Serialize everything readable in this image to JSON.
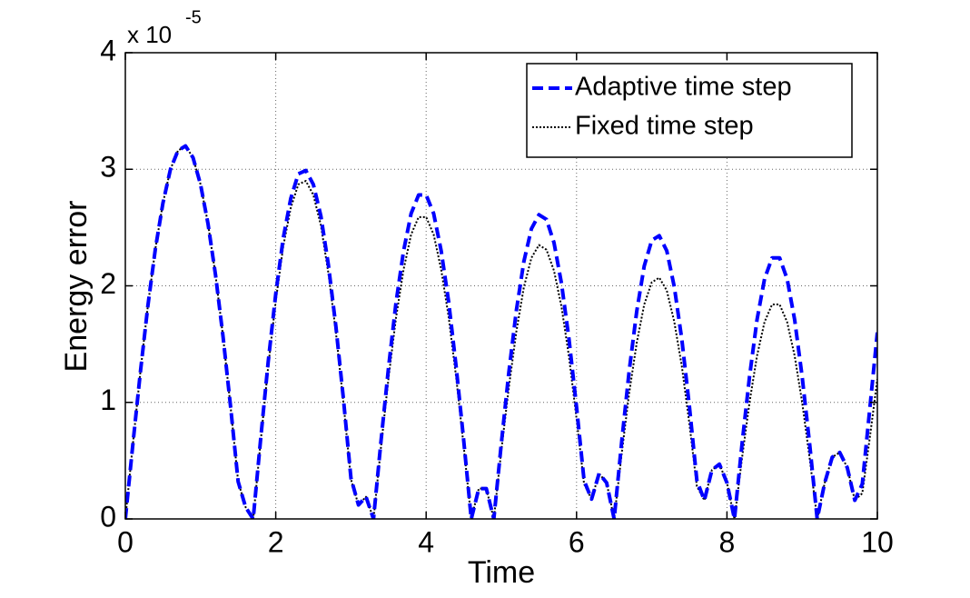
{
  "chart_data": {
    "type": "line",
    "xlabel": "Time",
    "ylabel": "Energy error",
    "y_multiplier": "x 10",
    "y_exponent": "-5",
    "x": [
      0,
      0.1,
      0.2,
      0.3,
      0.4,
      0.5,
      0.6,
      0.7,
      0.8,
      0.9,
      1,
      1.1,
      1.2,
      1.3,
      1.4,
      1.5,
      1.6,
      1.7,
      1.8,
      1.9,
      2,
      2.1,
      2.2,
      2.3,
      2.4,
      2.5,
      2.6,
      2.7,
      2.8,
      2.9,
      3,
      3.1,
      3.2,
      3.3,
      3.4,
      3.5,
      3.6,
      3.7,
      3.8,
      3.9,
      4,
      4.1,
      4.2,
      4.3,
      4.4,
      4.5,
      4.6,
      4.7,
      4.8,
      4.9,
      5,
      5.1,
      5.2,
      5.3,
      5.4,
      5.5,
      5.6,
      5.7,
      5.8,
      5.9,
      6,
      6.1,
      6.2,
      6.3,
      6.4,
      6.5,
      6.6,
      6.7,
      6.8,
      6.9,
      7,
      7.1,
      7.2,
      7.3,
      7.4,
      7.5,
      7.6,
      7.7,
      7.8,
      7.9,
      8,
      8.1,
      8.2,
      8.3,
      8.4,
      8.5,
      8.6,
      8.7,
      8.8,
      8.9,
      9,
      9.1,
      9.2,
      9.3,
      9.4,
      9.5,
      9.6,
      9.7,
      9.8,
      9.9,
      10
    ],
    "series": [
      {
        "name": "Fixed time step",
        "color": "#000000",
        "style": "dotted",
        "values": [
          0,
          0.64,
          1.26,
          1.83,
          2.32,
          2.71,
          3.0,
          3.16,
          3.2,
          3.1,
          2.87,
          2.53,
          2.09,
          1.56,
          0.96,
          0.32,
          0.1,
          0,
          0.67,
          1.31,
          1.87,
          2.34,
          2.67,
          2.87,
          2.9,
          2.78,
          2.52,
          2.11,
          1.6,
          1.0,
          0.34,
          0.12,
          0.19,
          0,
          0.62,
          1.21,
          1.73,
          2.14,
          2.44,
          2.59,
          2.59,
          2.44,
          2.14,
          1.73,
          1.21,
          0.62,
          0,
          0.26,
          0.26,
          0,
          0.59,
          1.13,
          1.61,
          1.99,
          2.24,
          2.35,
          2.31,
          2.13,
          1.82,
          1.39,
          0.86,
          0.3,
          0.17,
          0.39,
          0.31,
          0,
          0.56,
          1.08,
          1.51,
          1.84,
          2.03,
          2.07,
          1.96,
          1.69,
          1.31,
          0.82,
          0.28,
          0.16,
          0.42,
          0.47,
          0.31,
          0,
          0.52,
          1.0,
          1.4,
          1.69,
          1.84,
          1.84,
          1.69,
          1.4,
          1.0,
          0.52,
          0,
          0.31,
          0.53,
          0.57,
          0.44,
          0.16,
          0.22,
          0.7,
          1.2
        ]
      },
      {
        "name": "Adaptive time step",
        "color": "#0000ff",
        "style": "dashed",
        "values": [
          0,
          0.64,
          1.26,
          1.83,
          2.32,
          2.71,
          3.0,
          3.16,
          3.2,
          3.1,
          2.87,
          2.53,
          2.09,
          1.56,
          0.96,
          0.32,
          0.1,
          0,
          0.69,
          1.35,
          1.93,
          2.41,
          2.75,
          2.96,
          2.99,
          2.87,
          2.6,
          2.18,
          1.65,
          1.03,
          0.35,
          0.12,
          0.19,
          0,
          0.67,
          1.3,
          1.86,
          2.3,
          2.62,
          2.78,
          2.78,
          2.62,
          2.3,
          1.86,
          1.3,
          0.67,
          0,
          0.26,
          0.26,
          0,
          0.65,
          1.26,
          1.79,
          2.21,
          2.49,
          2.61,
          2.57,
          2.37,
          2.02,
          1.54,
          0.96,
          0.33,
          0.17,
          0.39,
          0.31,
          0,
          0.66,
          1.27,
          1.78,
          2.17,
          2.39,
          2.43,
          2.3,
          1.99,
          1.54,
          0.97,
          0.33,
          0.16,
          0.42,
          0.47,
          0.31,
          0,
          0.64,
          1.22,
          1.71,
          2.06,
          2.24,
          2.24,
          2.06,
          1.71,
          1.22,
          0.64,
          0,
          0.31,
          0.53,
          0.57,
          0.44,
          0.16,
          0.3,
          0.95,
          1.6
        ]
      }
    ],
    "legend_order": [
      1,
      0
    ],
    "legend": "upper right",
    "xlim": [
      0,
      10
    ],
    "xticks": [
      0,
      2,
      4,
      6,
      8,
      10
    ],
    "ylim": [
      0,
      4
    ],
    "yticks": [
      0,
      1,
      2,
      3,
      4
    ],
    "grid": true
  }
}
